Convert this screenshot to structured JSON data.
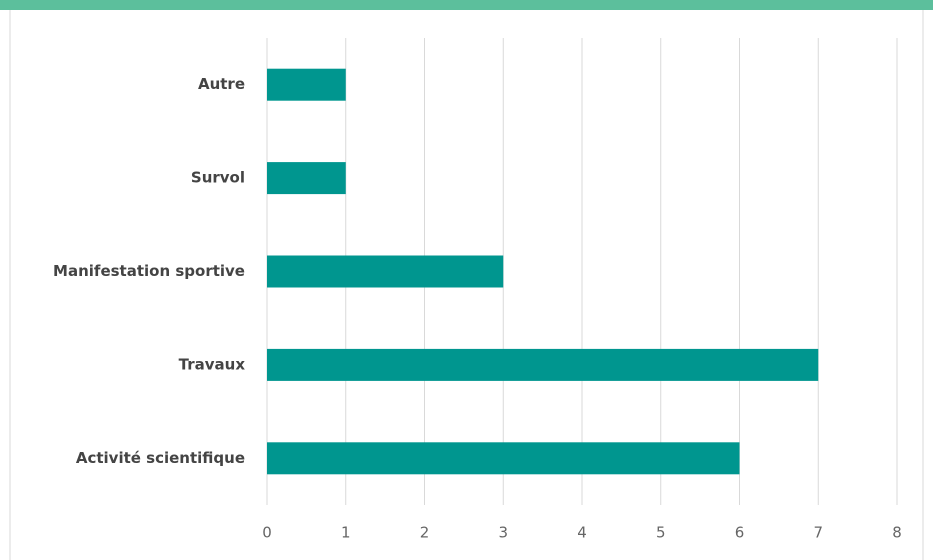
{
  "chart_data": {
    "type": "bar",
    "orientation": "horizontal",
    "categories": [
      "Autre",
      "Survol",
      "Manifestation sportive",
      "Travaux",
      "Activité scientifique"
    ],
    "values": [
      1,
      1,
      3,
      7,
      6
    ],
    "color": "#00968f",
    "xlim": [
      0,
      8
    ],
    "xticks": [
      0,
      1,
      2,
      3,
      4,
      5,
      6,
      7,
      8
    ],
    "grid": true
  }
}
